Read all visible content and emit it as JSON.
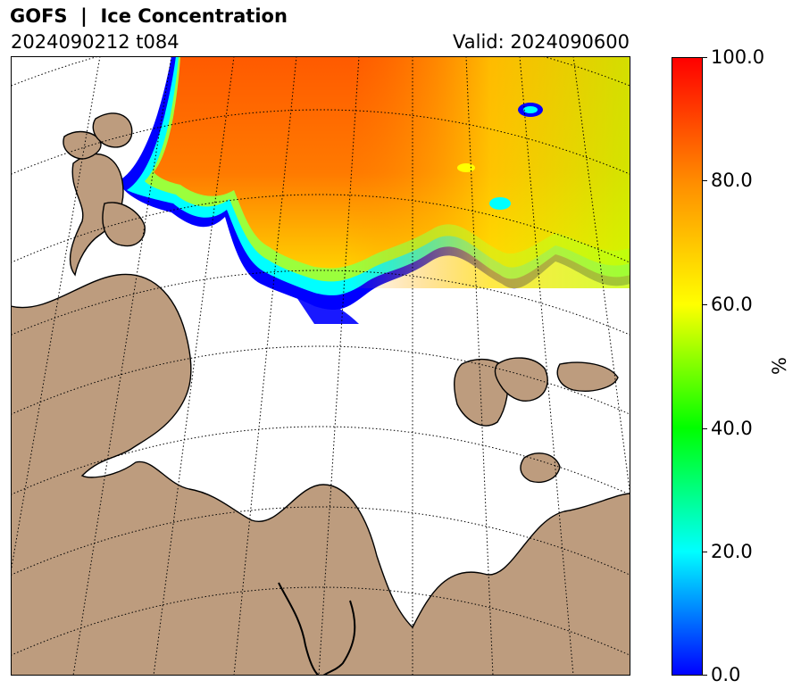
{
  "header": {
    "title": "GOFS  |  Ice Concentration",
    "run": "2024090212 t084",
    "valid": "Valid: 2024090600"
  },
  "colorbar": {
    "unit": "%",
    "ticks": [
      "100.0",
      "80.0",
      "60.0",
      "40.0",
      "20.0",
      "0.0"
    ],
    "colors": [
      "#0000ff",
      "#00ffff",
      "#00ff00",
      "#ffff00",
      "#ff8c00",
      "#ff0000"
    ]
  },
  "map": {
    "land_color": "#bd9c7e",
    "ice_colors": {
      "high": "#ff4a00",
      "mid": "#ffa000",
      "low": "#00ffff",
      "edge": "#0000ff"
    }
  }
}
